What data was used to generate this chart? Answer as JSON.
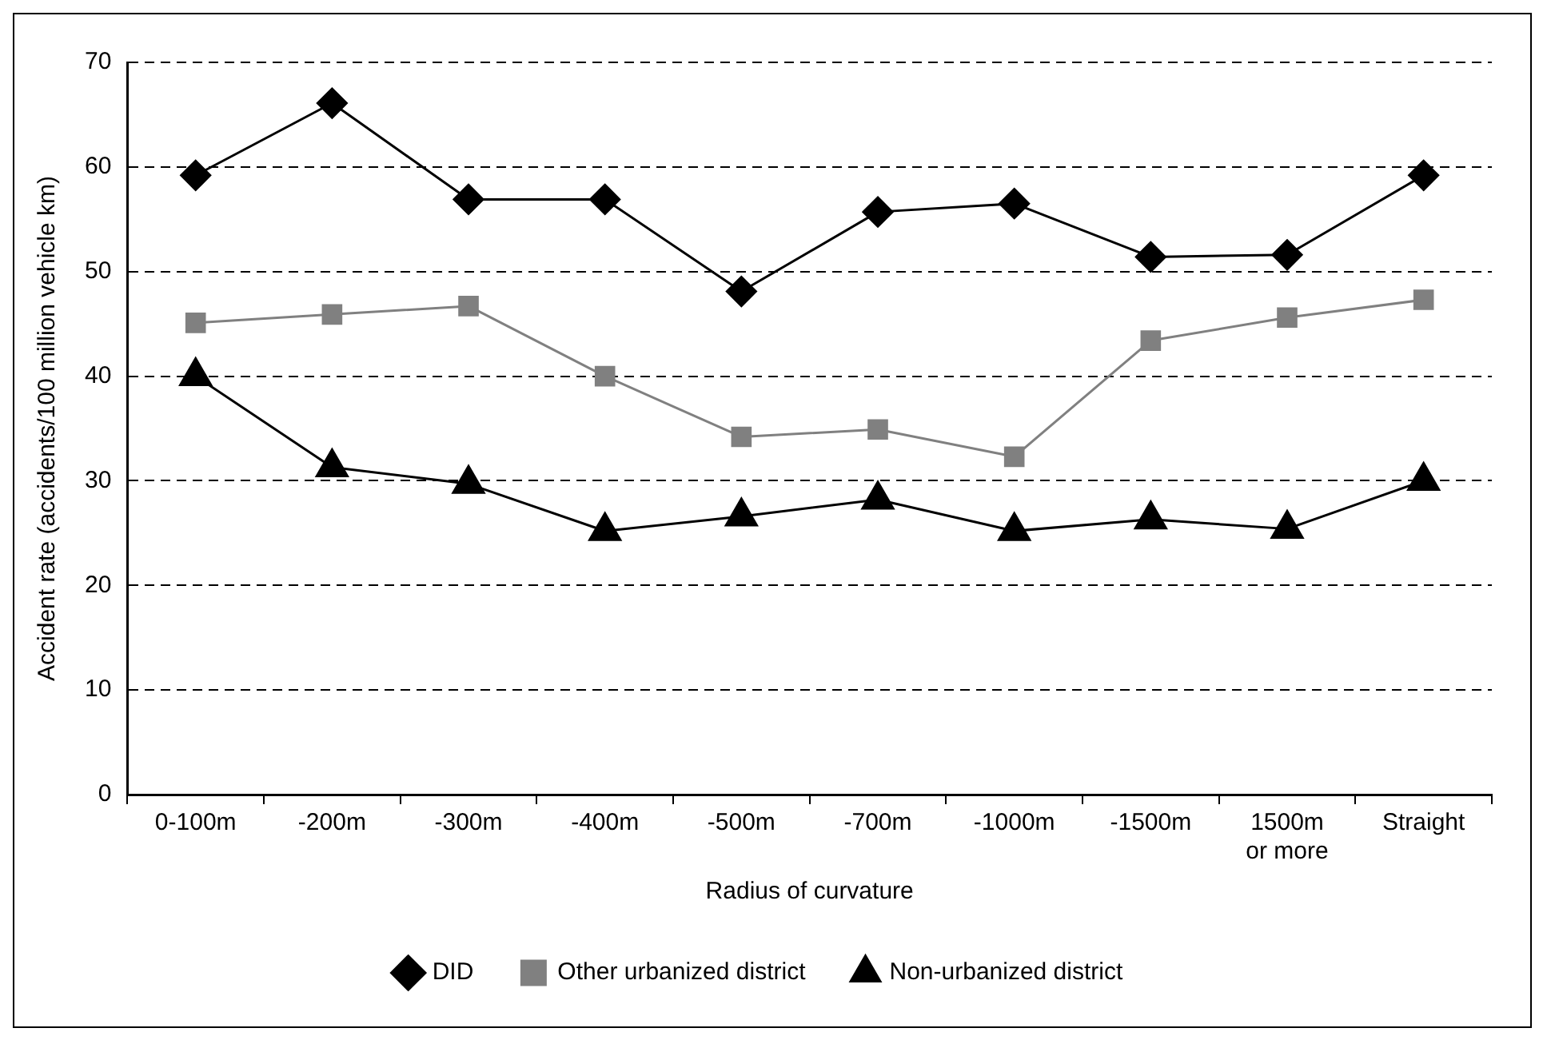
{
  "chart_data": {
    "type": "line",
    "xlabel": "Radius of curvature",
    "ylabel": "Accident rate (accidents/100 million vehicle km)",
    "categories": [
      "0-100m",
      "-200m",
      "-300m",
      "-400m",
      "-500m",
      "-700m",
      "-1000m",
      "-1500m",
      "1500m or more",
      "Straight"
    ],
    "series": [
      {
        "name": "DID",
        "color": "#000000",
        "marker": "diamond",
        "values": [
          59.2,
          66.1,
          56.9,
          56.9,
          48.1,
          55.7,
          56.5,
          51.4,
          51.6,
          59.2
        ]
      },
      {
        "name": "Other urbanized district",
        "color": "#808080",
        "marker": "square",
        "values": [
          45.1,
          45.9,
          46.7,
          40.0,
          34.2,
          34.9,
          32.3,
          43.4,
          45.6,
          47.3
        ]
      },
      {
        "name": "Non-urbanized district",
        "color": "#000000",
        "marker": "triangle",
        "values": [
          40.0,
          31.3,
          29.7,
          25.2,
          26.6,
          28.2,
          25.2,
          26.3,
          25.4,
          30.0
        ]
      }
    ],
    "ylim": [
      0,
      70
    ],
    "yticks": [
      0,
      10,
      20,
      30,
      40,
      50,
      60,
      70
    ],
    "grid": "y",
    "legend": "bottom",
    "line_style": "solid"
  }
}
